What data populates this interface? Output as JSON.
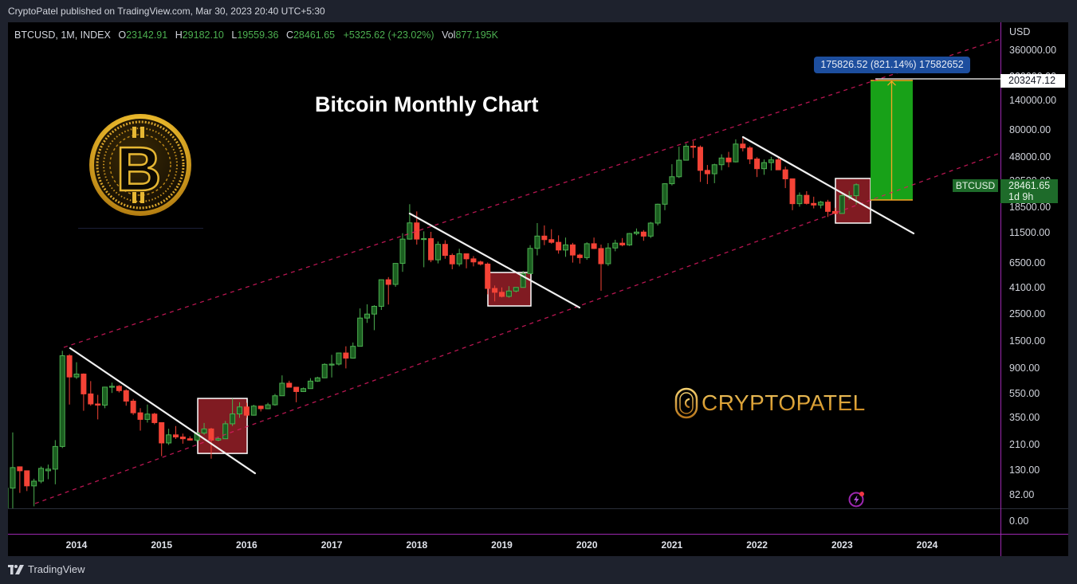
{
  "header": {
    "published": "CryptoPatel published on TradingView.com, Mar 30, 2023 20:40 UTC+5:30"
  },
  "legend": {
    "symbol": "BTCUSD, 1M, INDEX",
    "o_label": "O",
    "o": "23142.91",
    "h_label": "H",
    "h": "29182.10",
    "l_label": "L",
    "l": "19559.36",
    "c_label": "C",
    "c": "28461.65",
    "change": "+5325.62 (+23.02%)",
    "vol_label": "Vol",
    "vol": "877.195K"
  },
  "title": "Bitcoin Monthly Chart",
  "watermark": "CRYPTOPATEL",
  "price_axis": {
    "currency": "USD",
    "ticks": [
      {
        "price": 360000,
        "label": "360000.00"
      },
      {
        "price": 220000,
        "label": "220000.00"
      },
      {
        "price": 140000,
        "label": "140000.00"
      },
      {
        "price": 80000,
        "label": "80000.00"
      },
      {
        "price": 48000,
        "label": "48000.00"
      },
      {
        "price": 30500,
        "label": "30500.00"
      },
      {
        "price": 18500,
        "label": "18500.00"
      },
      {
        "price": 11500,
        "label": "11500.00"
      },
      {
        "price": 6500,
        "label": "6500.00"
      },
      {
        "price": 4100,
        "label": "4100.00"
      },
      {
        "price": 2500,
        "label": "2500.00"
      },
      {
        "price": 1500,
        "label": "1500.00"
      },
      {
        "price": 900,
        "label": "900.00"
      },
      {
        "price": 550,
        "label": "550.00"
      },
      {
        "price": 350,
        "label": "350.00"
      },
      {
        "price": 210,
        "label": "210.00"
      },
      {
        "price": 130,
        "label": "130.00"
      },
      {
        "price": 82,
        "label": "82.00"
      }
    ],
    "lower_pane_tick": "0.00"
  },
  "time_axis": {
    "ticks": [
      "2014",
      "2015",
      "2016",
      "2017",
      "2018",
      "2019",
      "2020",
      "2021",
      "2022",
      "2023",
      "2024"
    ]
  },
  "last_price": {
    "symbol": "BTCUSD",
    "value": "28461.65",
    "countdown": "1d 9h"
  },
  "measure": {
    "label": "175826.52 (821.14%) 17582652",
    "target_price": "203247.12"
  },
  "footer": {
    "brand": "TradingView"
  },
  "colors": {
    "up_body": "#1b5e20",
    "up_border": "#4caf50",
    "down": "#f44336",
    "channel": "#d81b60",
    "trendline": "#f0f0f0",
    "highlight_box": "#801b22",
    "projection": "#18a118",
    "projection_arrow": "#f5a623",
    "axis_divider": "#9c27b0"
  },
  "chart_data": {
    "type": "candlestick",
    "title": "Bitcoin Monthly Chart",
    "symbol": "BTCUSD",
    "interval": "1M",
    "y_scale": "log",
    "ylabel": "USD",
    "xlabel": "",
    "x_ticks": [
      "2014",
      "2015",
      "2016",
      "2017",
      "2018",
      "2019",
      "2020",
      "2021",
      "2022",
      "2023",
      "2024"
    ],
    "y_ticks": [
      360000,
      220000,
      140000,
      80000,
      48000,
      30500,
      18500,
      11500,
      6500,
      4100,
      2500,
      1500,
      900,
      550,
      350,
      210,
      130,
      82
    ],
    "ylim": [
      60,
      420000
    ],
    "grid": false,
    "candles_fields": [
      "month",
      "open",
      "high",
      "low",
      "close"
    ],
    "candles": [
      [
        "2013-03",
        34,
        95,
        33,
        93
      ],
      [
        "2013-04",
        93,
        266,
        50,
        137
      ],
      [
        "2013-05",
        139,
        140,
        85,
        129
      ],
      [
        "2013-06",
        129,
        129,
        88,
        97
      ],
      [
        "2013-07",
        97,
        111,
        66,
        106
      ],
      [
        "2013-08",
        106,
        140,
        102,
        135
      ],
      [
        "2013-09",
        129,
        145,
        110,
        133
      ],
      [
        "2013-10",
        133,
        230,
        100,
        204
      ],
      [
        "2013-11",
        204,
        1240,
        198,
        1130
      ],
      [
        "2013-12",
        1130,
        1165,
        450,
        757
      ],
      [
        "2014-01",
        757,
        1000,
        730,
        800
      ],
      [
        "2014-02",
        800,
        810,
        400,
        550
      ],
      [
        "2014-03",
        550,
        700,
        440,
        455
      ],
      [
        "2014-04",
        455,
        540,
        340,
        445
      ],
      [
        "2014-05",
        445,
        630,
        420,
        625
      ],
      [
        "2014-06",
        625,
        680,
        560,
        635
      ],
      [
        "2014-07",
        635,
        650,
        565,
        585
      ],
      [
        "2014-08",
        585,
        600,
        440,
        480
      ],
      [
        "2014-09",
        480,
        500,
        370,
        385
      ],
      [
        "2014-10",
        385,
        420,
        275,
        340
      ],
      [
        "2014-11",
        340,
        450,
        320,
        376
      ],
      [
        "2014-12",
        376,
        385,
        310,
        320
      ],
      [
        "2015-01",
        320,
        320,
        170,
        218
      ],
      [
        "2015-02",
        218,
        285,
        210,
        254
      ],
      [
        "2015-03",
        254,
        300,
        235,
        244
      ],
      [
        "2015-04",
        244,
        260,
        215,
        236
      ],
      [
        "2015-05",
        236,
        247,
        228,
        230
      ],
      [
        "2015-06",
        230,
        268,
        221,
        263
      ],
      [
        "2015-07",
        263,
        318,
        254,
        284
      ],
      [
        "2015-08",
        284,
        290,
        162,
        230
      ],
      [
        "2015-09",
        230,
        245,
        225,
        236
      ],
      [
        "2015-10",
        236,
        330,
        235,
        313
      ],
      [
        "2015-11",
        313,
        503,
        300,
        377
      ],
      [
        "2015-12",
        377,
        470,
        350,
        430
      ],
      [
        "2016-01",
        430,
        465,
        350,
        368
      ],
      [
        "2016-02",
        368,
        448,
        365,
        437
      ],
      [
        "2016-03",
        437,
        440,
        395,
        416
      ],
      [
        "2016-04",
        416,
        465,
        412,
        448
      ],
      [
        "2016-05",
        448,
        550,
        440,
        531
      ],
      [
        "2016-06",
        531,
        780,
        530,
        673
      ],
      [
        "2016-07",
        673,
        705,
        620,
        624
      ],
      [
        "2016-08",
        624,
        625,
        470,
        575
      ],
      [
        "2016-09",
        575,
        620,
        570,
        608
      ],
      [
        "2016-10",
        608,
        740,
        605,
        700
      ],
      [
        "2016-11",
        700,
        760,
        690,
        745
      ],
      [
        "2016-12",
        745,
        980,
        740,
        960
      ],
      [
        "2017-01",
        960,
        1150,
        750,
        965
      ],
      [
        "2017-02",
        965,
        1200,
        940,
        1190
      ],
      [
        "2017-03",
        1190,
        1350,
        890,
        1080
      ],
      [
        "2017-04",
        1080,
        1450,
        1070,
        1350
      ],
      [
        "2017-05",
        1350,
        2760,
        1350,
        2300
      ],
      [
        "2017-06",
        2300,
        2980,
        2100,
        2480
      ],
      [
        "2017-07",
        2480,
        2930,
        1830,
        2870
      ],
      [
        "2017-08",
        2870,
        4750,
        2680,
        4740
      ],
      [
        "2017-09",
        4740,
        4980,
        2970,
        4340
      ],
      [
        "2017-10",
        4340,
        6470,
        4150,
        6450
      ],
      [
        "2017-11",
        6450,
        11400,
        5500,
        10200
      ],
      [
        "2017-12",
        10200,
        19700,
        10100,
        13850
      ],
      [
        "2018-01",
        13850,
        17200,
        9200,
        10200
      ],
      [
        "2018-02",
        10200,
        11800,
        6000,
        10300
      ],
      [
        "2018-03",
        10300,
        11700,
        6600,
        6900
      ],
      [
        "2018-04",
        6900,
        9750,
        6450,
        9240
      ],
      [
        "2018-05",
        9240,
        9990,
        7040,
        7500
      ],
      [
        "2018-06",
        7500,
        7770,
        5780,
        6390
      ],
      [
        "2018-07",
        6390,
        8500,
        6100,
        7730
      ],
      [
        "2018-08",
        7730,
        7750,
        5880,
        7030
      ],
      [
        "2018-09",
        7030,
        7400,
        6100,
        6630
      ],
      [
        "2018-10",
        6630,
        6800,
        6200,
        6370
      ],
      [
        "2018-11",
        6370,
        6560,
        3600,
        4020
      ],
      [
        "2018-12",
        4020,
        4250,
        3150,
        3740
      ],
      [
        "2019-01",
        3740,
        4100,
        3400,
        3460
      ],
      [
        "2019-02",
        3460,
        4200,
        3380,
        3830
      ],
      [
        "2019-03",
        3830,
        4120,
        3730,
        4100
      ],
      [
        "2019-04",
        4100,
        5600,
        4080,
        5320
      ],
      [
        "2019-05",
        5320,
        9100,
        5270,
        8560
      ],
      [
        "2019-06",
        8560,
        13800,
        7500,
        10800
      ],
      [
        "2019-07",
        10800,
        13200,
        9100,
        10100
      ],
      [
        "2019-08",
        10100,
        12300,
        9350,
        9600
      ],
      [
        "2019-09",
        9600,
        10950,
        7750,
        8300
      ],
      [
        "2019-10",
        8300,
        10500,
        7300,
        9150
      ],
      [
        "2019-11",
        9150,
        9500,
        6550,
        7550
      ],
      [
        "2019-12",
        7550,
        7750,
        6430,
        7190
      ],
      [
        "2020-01",
        7190,
        9600,
        6900,
        9350
      ],
      [
        "2020-02",
        9350,
        10500,
        8450,
        8540
      ],
      [
        "2020-03",
        8540,
        9200,
        3850,
        6410
      ],
      [
        "2020-04",
        6410,
        9460,
        6150,
        8630
      ],
      [
        "2020-05",
        8630,
        10070,
        8110,
        9450
      ],
      [
        "2020-06",
        9450,
        10400,
        8900,
        9140
      ],
      [
        "2020-07",
        9140,
        11450,
        8980,
        11330
      ],
      [
        "2020-08",
        11330,
        12470,
        10980,
        11650
      ],
      [
        "2020-09",
        11650,
        12090,
        9880,
        10790
      ],
      [
        "2020-10",
        10790,
        14100,
        10400,
        13800
      ],
      [
        "2020-11",
        13800,
        19900,
        13200,
        19700
      ],
      [
        "2020-12",
        19700,
        29300,
        17600,
        29000
      ],
      [
        "2021-01",
        29000,
        41900,
        28100,
        33100
      ],
      [
        "2021-02",
        33100,
        58300,
        32300,
        45200
      ],
      [
        "2021-03",
        45200,
        61700,
        45000,
        58800
      ],
      [
        "2021-04",
        58800,
        64800,
        47100,
        57700
      ],
      [
        "2021-05",
        57700,
        59600,
        30000,
        37300
      ],
      [
        "2021-06",
        37300,
        41300,
        28800,
        35000
      ],
      [
        "2021-07",
        35000,
        42300,
        29300,
        41500
      ],
      [
        "2021-08",
        41500,
        50500,
        37400,
        47100
      ],
      [
        "2021-09",
        47100,
        52900,
        39600,
        43800
      ],
      [
        "2021-10",
        43800,
        67000,
        43300,
        61300
      ],
      [
        "2021-11",
        61300,
        69000,
        53300,
        57000
      ],
      [
        "2021-12",
        57000,
        59000,
        42000,
        46200
      ],
      [
        "2022-01",
        46200,
        47900,
        32900,
        38500
      ],
      [
        "2022-02",
        38500,
        45800,
        34300,
        43200
      ],
      [
        "2022-03",
        43200,
        48200,
        37200,
        45500
      ],
      [
        "2022-04",
        45500,
        47400,
        37700,
        37700
      ],
      [
        "2022-05",
        37700,
        40000,
        26700,
        31800
      ],
      [
        "2022-06",
        31800,
        31900,
        17600,
        19900
      ],
      [
        "2022-07",
        19900,
        24600,
        18800,
        23300
      ],
      [
        "2022-08",
        23300,
        25200,
        19600,
        20000
      ],
      [
        "2022-09",
        20000,
        22700,
        18200,
        19400
      ],
      [
        "2022-10",
        19400,
        21000,
        18200,
        20500
      ],
      [
        "2022-11",
        20500,
        21400,
        15500,
        17200
      ],
      [
        "2022-12",
        17200,
        18400,
        16300,
        16550
      ],
      [
        "2023-01",
        16550,
        23900,
        16500,
        23140
      ],
      [
        "2023-02",
        23140,
        25250,
        21400,
        23142
      ],
      [
        "2023-03",
        23142.91,
        29182.1,
        19559.36,
        28461.65
      ]
    ],
    "annotations": {
      "channels": [
        {
          "name": "upper-channel",
          "from": [
            2013.85,
            1323
          ],
          "to": [
            2024.862,
            444500
          ]
        },
        {
          "name": "lower-channel",
          "from": [
            2013.513,
            69.5
          ],
          "to": [
            2024.862,
            51800
          ]
        }
      ],
      "trendlines": [
        {
          "from": [
            2013.925,
            1303
          ],
          "to": [
            2016.099,
            123
          ]
        },
        {
          "from": [
            2017.917,
            16530
          ],
          "to": [
            2019.914,
            2804
          ]
        },
        {
          "from": [
            2021.835,
            69960
          ],
          "to": [
            2023.841,
            11350
          ]
        }
      ],
      "boxes": [
        {
          "t1": 2015.425,
          "t2": 2016.006,
          "p_top": 505,
          "p_bottom": 179
        },
        {
          "t1": 2018.836,
          "t2": 2019.342,
          "p_top": 5435,
          "p_bottom": 2891
        },
        {
          "t1": 2022.922,
          "t2": 2023.335,
          "p_top": 32020,
          "p_bottom": 13800
        }
      ],
      "projection": {
        "t1": 2023.335,
        "t2": 2023.831,
        "p_top": 203247.12,
        "p_bottom": 21340,
        "change": 175826.52,
        "change_pct": 821.14
      }
    }
  }
}
